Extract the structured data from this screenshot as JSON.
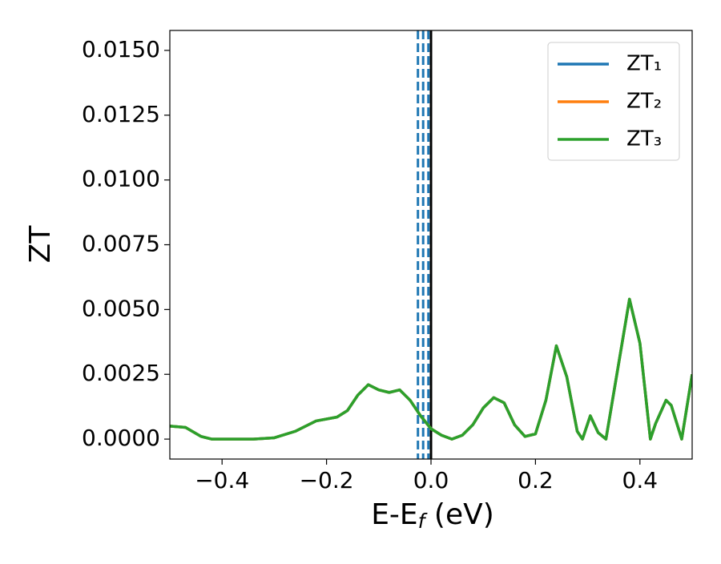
{
  "chart_data": {
    "type": "line",
    "xlabel": [
      "E-E",
      "f",
      " (eV)"
    ],
    "ylabel": "ZT",
    "x": [
      -0.5,
      -0.47,
      -0.44,
      -0.42,
      -0.4,
      -0.36,
      -0.34,
      -0.3,
      -0.26,
      -0.22,
      -0.18,
      -0.16,
      -0.14,
      -0.12,
      -0.1,
      -0.08,
      -0.06,
      -0.04,
      -0.02,
      0.0,
      0.02,
      0.04,
      0.06,
      0.08,
      0.1,
      0.12,
      0.14,
      0.16,
      0.18,
      0.2,
      0.22,
      0.24,
      0.26,
      0.28,
      0.29,
      0.305,
      0.32,
      0.335,
      0.36,
      0.38,
      0.4,
      0.42,
      0.43,
      0.45,
      0.46,
      0.48,
      0.5
    ],
    "series": [
      {
        "name": "ZT₁",
        "color": "#1f77b4",
        "values": [
          0.0005,
          0.00045,
          0.0001,
          0.0,
          0.0,
          0.0,
          0.0,
          5e-05,
          0.0003,
          0.0007,
          0.00085,
          0.0011,
          0.0017,
          0.0021,
          0.0019,
          0.0018,
          0.0019,
          0.0015,
          0.0009,
          0.0004,
          0.00015,
          0.0,
          0.00015,
          0.00055,
          0.0012,
          0.0016,
          0.0014,
          0.00055,
          0.0001,
          0.0002,
          0.0015,
          0.0036,
          0.0024,
          0.0003,
          0.0,
          0.0009,
          0.00025,
          0.0,
          0.003,
          0.0054,
          0.0037,
          0.0,
          0.0006,
          0.0015,
          0.0013,
          0.0,
          0.0025
        ]
      },
      {
        "name": "ZT₂",
        "color": "#ff7f0e",
        "values": [
          0.0005,
          0.00045,
          0.0001,
          0.0,
          0.0,
          0.0,
          0.0,
          5e-05,
          0.0003,
          0.0007,
          0.00085,
          0.0011,
          0.0017,
          0.0021,
          0.0019,
          0.0018,
          0.0019,
          0.0015,
          0.0009,
          0.0004,
          0.00015,
          0.0,
          0.00015,
          0.00055,
          0.0012,
          0.0016,
          0.0014,
          0.00055,
          0.0001,
          0.0002,
          0.0015,
          0.0036,
          0.0024,
          0.0003,
          0.0,
          0.0009,
          0.00025,
          0.0,
          0.003,
          0.0054,
          0.0037,
          0.0,
          0.0006,
          0.0015,
          0.0013,
          0.0,
          0.0025
        ]
      },
      {
        "name": "ZT₃",
        "color": "#2ca02c",
        "values": [
          0.0005,
          0.00045,
          0.0001,
          0.0,
          0.0,
          0.0,
          0.0,
          5e-05,
          0.0003,
          0.0007,
          0.00085,
          0.0011,
          0.0017,
          0.0021,
          0.0019,
          0.0018,
          0.0019,
          0.0015,
          0.0009,
          0.0004,
          0.00015,
          0.0,
          0.00015,
          0.00055,
          0.0012,
          0.0016,
          0.0014,
          0.00055,
          0.0001,
          0.0002,
          0.0015,
          0.0036,
          0.0024,
          0.0003,
          0.0,
          0.0009,
          0.00025,
          0.0,
          0.003,
          0.0054,
          0.0037,
          0.0,
          0.0006,
          0.0015,
          0.0013,
          0.0,
          0.0025
        ]
      }
    ],
    "vlines": [
      {
        "x": -0.025,
        "color": "#1f77b4",
        "style": "dashed"
      },
      {
        "x": -0.015,
        "color": "#1f77b4",
        "style": "dashed"
      },
      {
        "x": -0.005,
        "color": "#1f77b4",
        "style": "dashed"
      },
      {
        "x": 0,
        "color": "#000000",
        "style": "solid"
      }
    ],
    "xlim": [
      -0.5,
      0.5
    ],
    "ylim": [
      -0.00077,
      0.01577
    ],
    "xticks": [
      {
        "value": -0.4,
        "label": "−0.4"
      },
      {
        "value": -0.2,
        "label": "−0.2"
      },
      {
        "value": 0,
        "label": "0.0"
      },
      {
        "value": 0.2,
        "label": "0.2"
      },
      {
        "value": 0.4,
        "label": "0.4"
      }
    ],
    "yticks": [
      {
        "value": 0,
        "label": "0.0000"
      },
      {
        "value": 0.0025,
        "label": "0.0025"
      },
      {
        "value": 0.005,
        "label": "0.0050"
      },
      {
        "value": 0.0075,
        "label": "0.0075"
      },
      {
        "value": 0.01,
        "label": "0.0100"
      },
      {
        "value": 0.0125,
        "label": "0.0125"
      },
      {
        "value": 0.015,
        "label": "0.0150"
      }
    ],
    "grid": false,
    "legend": "upper right"
  }
}
